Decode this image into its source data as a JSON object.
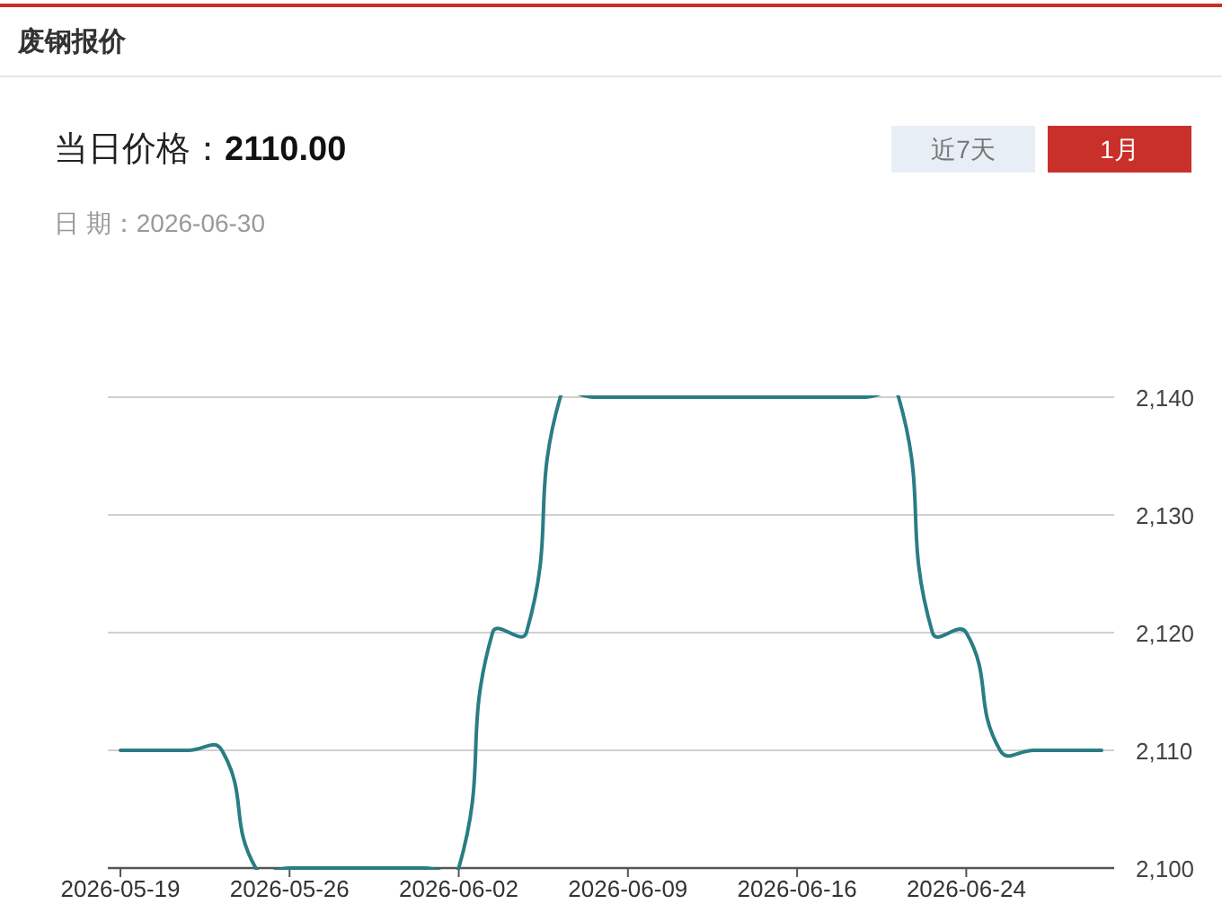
{
  "chart_data": {
    "type": "line",
    "title": "废钢报价",
    "annotations": [
      "当日价格：",
      "2110.00",
      "近7天",
      "1月",
      "日 期：2026-06-30"
    ],
    "categories": [
      "2026-05-19",
      null,
      null,
      null,
      null,
      "2026-05-26",
      null,
      null,
      null,
      null,
      "2026-06-02",
      null,
      null,
      null,
      null,
      "2026-06-09",
      null,
      null,
      null,
      null,
      "2026-06-16",
      null,
      null,
      null,
      null,
      "2026-06-24",
      null,
      null,
      null,
      null
    ],
    "values": [
      2110,
      2110,
      2110,
      2110,
      2100,
      2100,
      2100,
      2100,
      2100,
      2100,
      2100,
      2120,
      2120,
      2140,
      2140,
      2140,
      2140,
      2140,
      2140,
      2140,
      2140,
      2140,
      2140,
      2140,
      2120,
      2120,
      2110,
      2110,
      2110,
      2110
    ],
    "color": "#2a7d84",
    "ylim": [
      2100,
      2140
    ],
    "yticks": [
      {
        "value": 2100,
        "label": "2,100"
      },
      {
        "value": 2110,
        "label": "2,110"
      },
      {
        "value": 2120,
        "label": "2,120"
      },
      {
        "value": 2130,
        "label": "2,130"
      },
      {
        "value": 2140,
        "label": "2,140"
      }
    ],
    "grid": "y",
    "line_style": "solid"
  }
}
